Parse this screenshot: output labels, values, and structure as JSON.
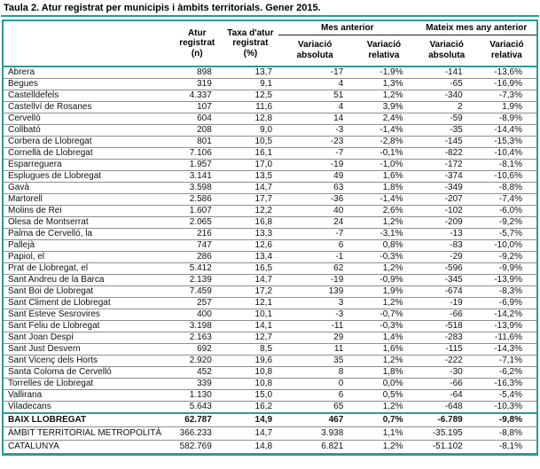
{
  "colors": {
    "accent_teal": "#2b9a9a",
    "row_separator": "#8f8f8f",
    "group_rule": "#1a1a1a",
    "text": "#111111",
    "background": "#ffffff"
  },
  "header": {
    "municipality": "",
    "atur": "Atur\nregistrat\n(n)",
    "taxa": "Taxa d'atur\nregistrat\n(%)",
    "mes_anterior": "Mes anterior",
    "mateix_mes": "Mateix mes any anterior",
    "variacio_absoluta": "Variació\nabsoluta",
    "variacio_relativa": "Variació\nrelativa"
  },
  "chart_data": {
    "type": "table",
    "title": "Taula 2. Atur registrat per municipis i àmbits territorials. Gener 2015.",
    "columns": [
      "",
      "Atur registrat (n)",
      "Taxa d'atur registrat (%)",
      "Mes anterior - Variació absoluta",
      "Mes anterior - Variació relativa",
      "Mateix mes any anterior - Variació absoluta",
      "Mateix mes any anterior - Variació relativa"
    ],
    "column_groups": [
      {
        "label": "Mes anterior",
        "span": 2
      },
      {
        "label": "Mateix mes any anterior",
        "span": 2
      }
    ],
    "rows": [
      [
        "Abrera",
        "898",
        "13,7",
        "-17",
        "-1,9%",
        "-141",
        "-13,6%"
      ],
      [
        "Begues",
        "319",
        "9,1",
        "4",
        "1,3%",
        "-65",
        "-16,9%"
      ],
      [
        "Castelldefels",
        "4.337",
        "12,5",
        "51",
        "1,2%",
        "-340",
        "-7,3%"
      ],
      [
        "Castellví de Rosanes",
        "107",
        "11,6",
        "4",
        "3,9%",
        "2",
        "1,9%"
      ],
      [
        "Cervelló",
        "604",
        "12,8",
        "14",
        "2,4%",
        "-59",
        "-8,9%"
      ],
      [
        "Collbató",
        "208",
        "9,0",
        "-3",
        "-1,4%",
        "-35",
        "-14,4%"
      ],
      [
        "Corbera de Llobregat",
        "801",
        "10,5",
        "-23",
        "-2,8%",
        "-145",
        "-15,3%"
      ],
      [
        "Cornellà de Llobregat",
        "7.106",
        "16,1",
        "-7",
        "-0,1%",
        "-822",
        "-10,4%"
      ],
      [
        "Esparreguera",
        "1.957",
        "17,0",
        "-19",
        "-1,0%",
        "-172",
        "-8,1%"
      ],
      [
        "Esplugues de Llobregat",
        "3.141",
        "13,5",
        "49",
        "1,6%",
        "-374",
        "-10,6%"
      ],
      [
        "Gavà",
        "3.598",
        "14,7",
        "63",
        "1,8%",
        "-349",
        "-8,8%"
      ],
      [
        "Martorell",
        "2.586",
        "17,7",
        "-36",
        "-1,4%",
        "-207",
        "-7,4%"
      ],
      [
        "Molins de Rei",
        "1.607",
        "12,2",
        "40",
        "2,6%",
        "-102",
        "-6,0%"
      ],
      [
        "Olesa de Montserrat",
        "2.065",
        "16,8",
        "24",
        "1,2%",
        "-209",
        "-9,2%"
      ],
      [
        "Palma de Cervelló, la",
        "216",
        "13,3",
        "-7",
        "-3,1%",
        "-13",
        "-5,7%"
      ],
      [
        "Pallejà",
        "747",
        "12,6",
        "6",
        "0,8%",
        "-83",
        "-10,0%"
      ],
      [
        "Papiol, el",
        "286",
        "13,4",
        "-1",
        "-0,3%",
        "-29",
        "-9,2%"
      ],
      [
        "Prat de Llobregat, el",
        "5.412",
        "16,5",
        "62",
        "1,2%",
        "-596",
        "-9,9%"
      ],
      [
        "Sant Andreu de la Barca",
        "2.139",
        "14,7",
        "-19",
        "-0,9%",
        "-345",
        "-13,9%"
      ],
      [
        "Sant Boi de Llobregat",
        "7.459",
        "17,2",
        "139",
        "1,9%",
        "-674",
        "-8,3%"
      ],
      [
        "Sant Climent de Llobregat",
        "257",
        "12,1",
        "3",
        "1,2%",
        "-19",
        "-6,9%"
      ],
      [
        "Sant Esteve Sesrovires",
        "400",
        "10,1",
        "-3",
        "-0,7%",
        "-66",
        "-14,2%"
      ],
      [
        "Sant Feliu de Llobregat",
        "3.198",
        "14,1",
        "-11",
        "-0,3%",
        "-518",
        "-13,9%"
      ],
      [
        "Sant Joan Despí",
        "2.163",
        "12,7",
        "29",
        "1,4%",
        "-283",
        "-11,6%"
      ],
      [
        "Sant Just Desvern",
        "692",
        "8,5",
        "11",
        "1,6%",
        "-115",
        "-14,3%"
      ],
      [
        "Sant Vicenç dels Horts",
        "2.920",
        "19,6",
        "35",
        "1,2%",
        "-222",
        "-7,1%"
      ],
      [
        "Santa Coloma de Cervelló",
        "452",
        "10,8",
        "8",
        "1,8%",
        "-30",
        "-6,2%"
      ],
      [
        "Torrelles de Llobregat",
        "339",
        "10,8",
        "0",
        "0,0%",
        "-66",
        "-16,3%"
      ],
      [
        "Vallirana",
        "1.130",
        "15,0",
        "6",
        "0,5%",
        "-64",
        "-5,4%"
      ],
      [
        "Viladecans",
        "5.643",
        "16,2",
        "65",
        "1,2%",
        "-648",
        "-10,3%"
      ]
    ],
    "totals": [
      [
        "BAIX LLOBREGAT",
        "62.787",
        "14,9",
        "467",
        "0,7%",
        "-6.789",
        "-9,8%"
      ],
      [
        "ÀMBIT TERRITORIAL METROPOLITÀ",
        "366.233",
        "14,7",
        "3.938",
        "1,1%",
        "-35.195",
        "-8,8%"
      ],
      [
        "CATALUNYA",
        "582.769",
        "14,8",
        "6.821",
        "1,2%",
        "-51.102",
        "-8,1%"
      ]
    ]
  }
}
